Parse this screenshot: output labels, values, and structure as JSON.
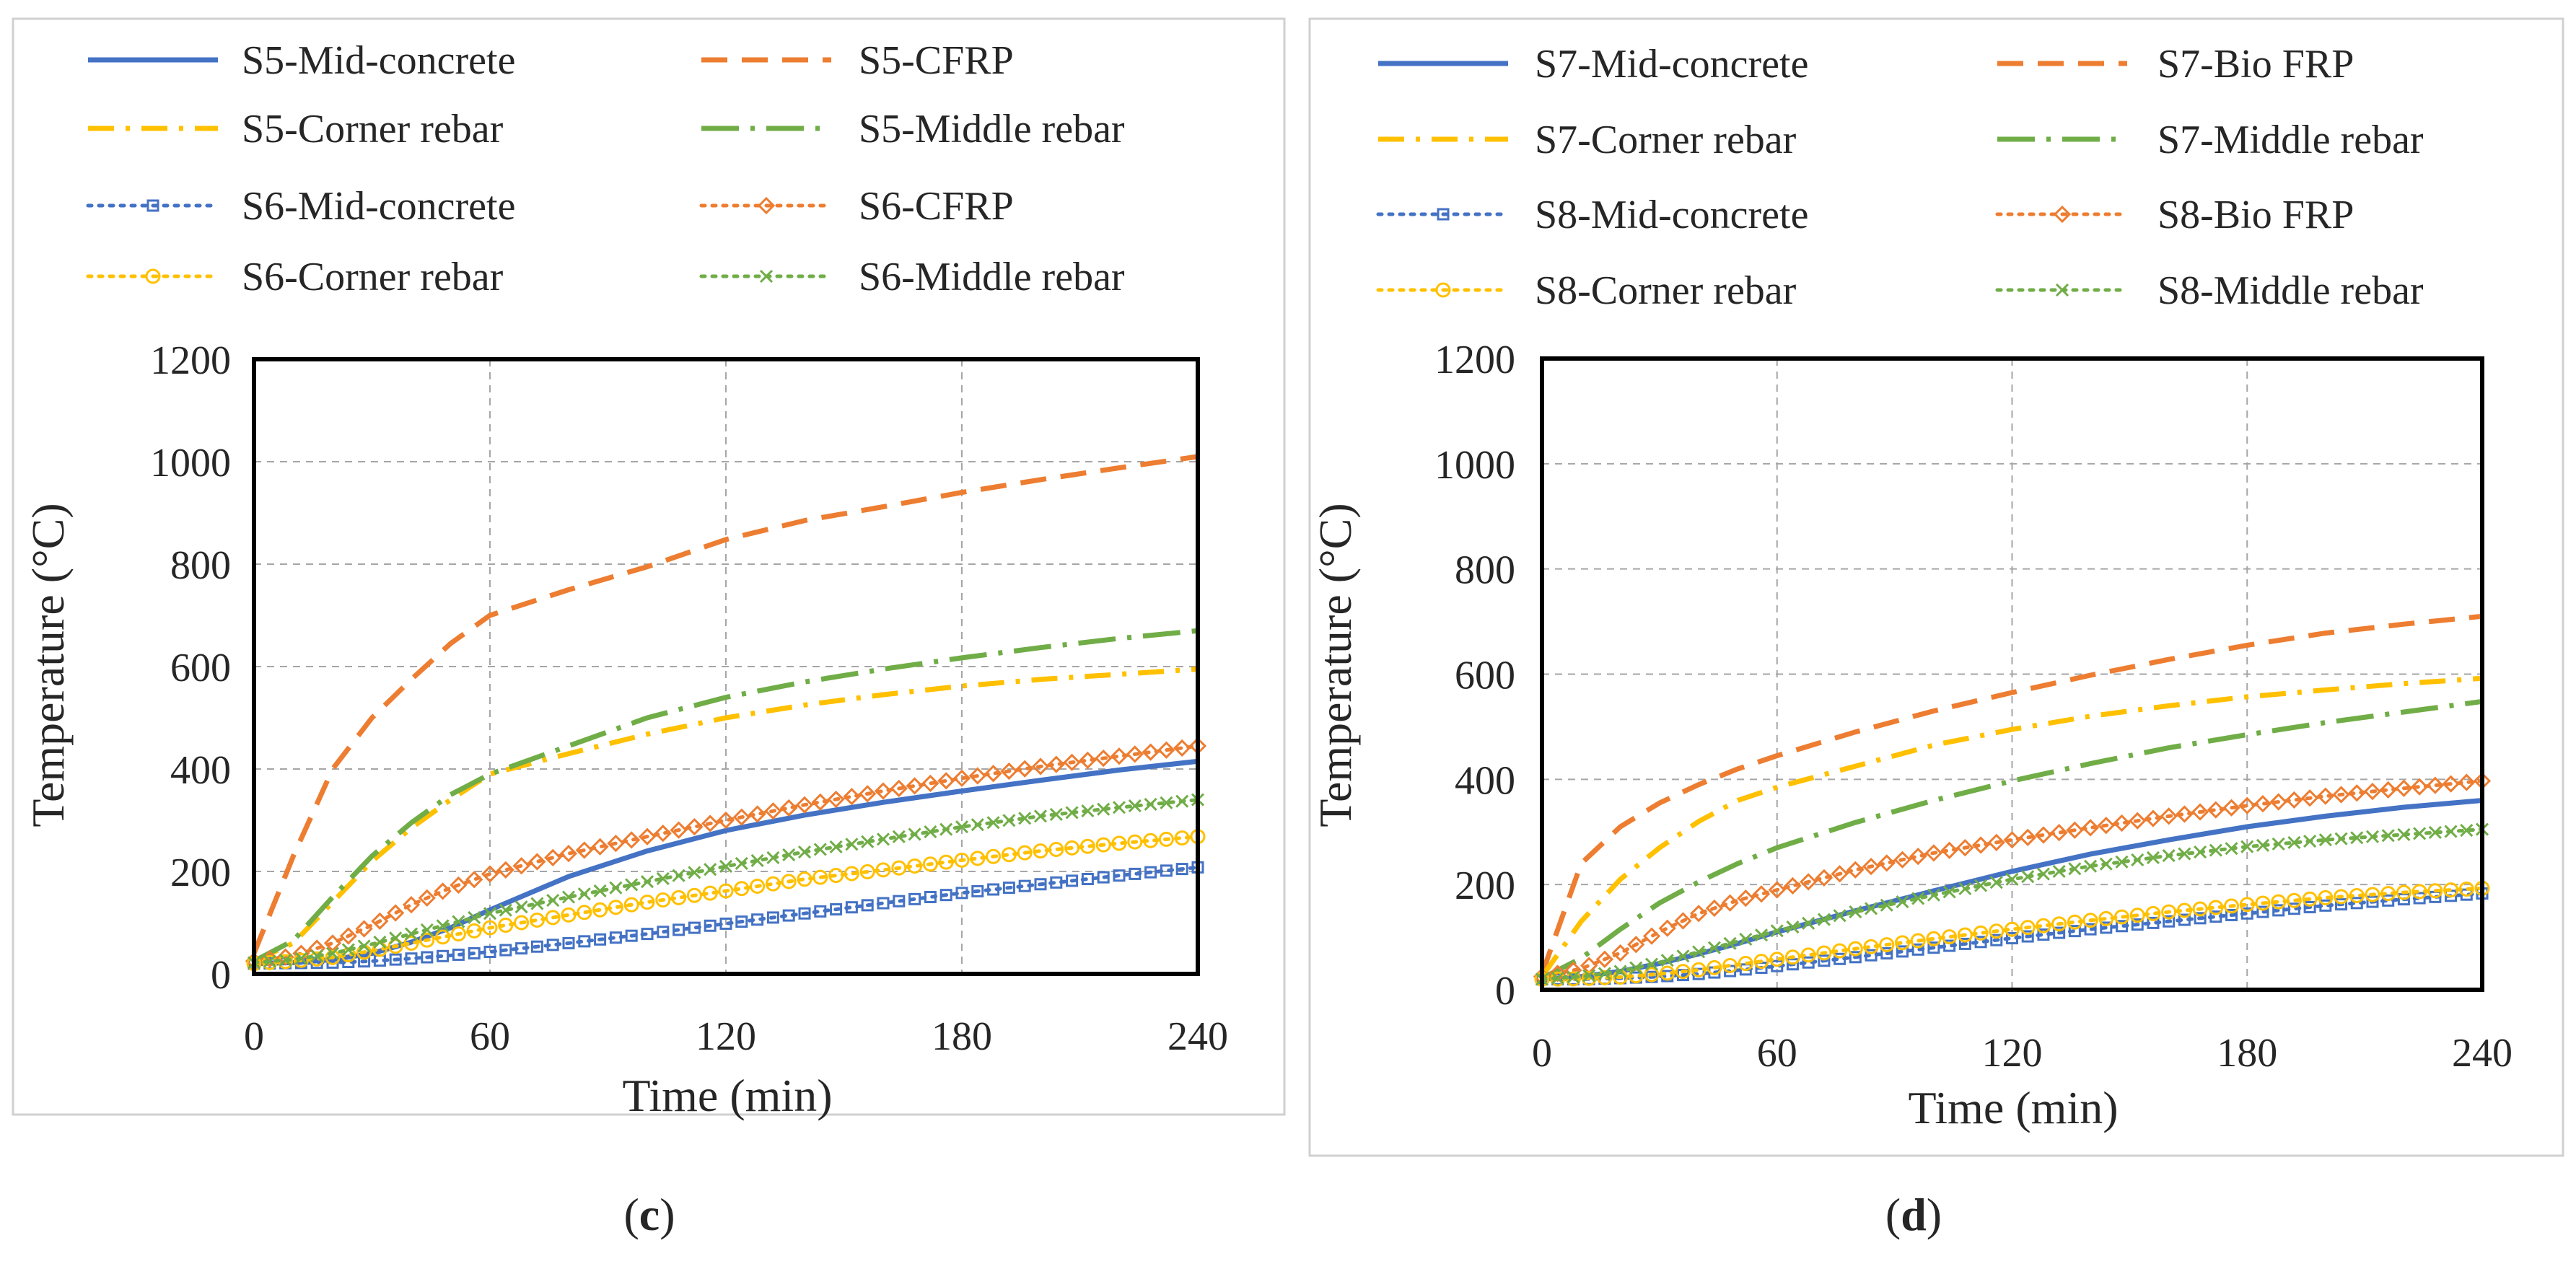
{
  "chart_data": [
    {
      "type": "line",
      "panel_label": "c",
      "xlabel": "Time (min)",
      "ylabel": "Temperature (°C)",
      "xlim": [
        0,
        240
      ],
      "ylim": [
        0,
        1200
      ],
      "xticks": [
        "0",
        "60",
        "120",
        "180",
        "240"
      ],
      "yticks": [
        "0",
        "200",
        "400",
        "600",
        "800",
        "1000",
        "1200"
      ],
      "grid": true,
      "legend_position": "top",
      "x": [
        0,
        10,
        20,
        30,
        40,
        50,
        60,
        80,
        100,
        120,
        140,
        160,
        180,
        200,
        220,
        240
      ],
      "series": [
        {
          "name": "S5-Mid-concrete",
          "color": "#4472C4",
          "style": "solid",
          "marker": "none",
          "values": [
            20,
            22,
            28,
            40,
            62,
            90,
            125,
            190,
            240,
            280,
            310,
            335,
            357,
            378,
            398,
            415
          ]
        },
        {
          "name": "S5-CFRP",
          "color": "#ED7D31",
          "style": "dash",
          "marker": "none",
          "values": [
            40,
            230,
            400,
            500,
            575,
            645,
            700,
            750,
            795,
            848,
            885,
            912,
            940,
            965,
            988,
            1010
          ]
        },
        {
          "name": "S5-Corner rebar",
          "color": "#FFC000",
          "style": "dashdot",
          "marker": "none",
          "values": [
            25,
            60,
            140,
            220,
            285,
            340,
            390,
            430,
            468,
            500,
            525,
            545,
            562,
            575,
            585,
            595
          ]
        },
        {
          "name": "S5-Middle rebar",
          "color": "#70AD47",
          "style": "longdashdot",
          "marker": "none",
          "values": [
            25,
            65,
            150,
            230,
            295,
            350,
            390,
            445,
            500,
            540,
            570,
            595,
            617,
            637,
            655,
            670
          ]
        },
        {
          "name": "S6-Mid-concrete",
          "color": "#4472C4",
          "style": "dot",
          "marker": "square",
          "values": [
            20,
            21,
            22,
            25,
            30,
            36,
            43,
            60,
            78,
            98,
            118,
            138,
            158,
            175,
            192,
            208
          ]
        },
        {
          "name": "S6-CFRP",
          "color": "#ED7D31",
          "style": "dot",
          "marker": "diamond",
          "values": [
            25,
            35,
            60,
            95,
            135,
            168,
            195,
            235,
            268,
            300,
            330,
            357,
            382,
            405,
            425,
            445
          ]
        },
        {
          "name": "S6-Corner rebar",
          "color": "#FFC000",
          "style": "dot",
          "marker": "circle",
          "values": [
            20,
            25,
            32,
            45,
            60,
            75,
            90,
            115,
            140,
            162,
            185,
            203,
            222,
            240,
            255,
            268
          ]
        },
        {
          "name": "S6-Middle rebar",
          "color": "#70AD47",
          "style": "dot",
          "marker": "x",
          "values": [
            22,
            28,
            40,
            58,
            78,
            98,
            118,
            150,
            180,
            210,
            238,
            263,
            287,
            308,
            325,
            340
          ]
        }
      ]
    },
    {
      "type": "line",
      "panel_label": "d",
      "xlabel": "Time (min)",
      "ylabel": "Temperature (°C)",
      "xlim": [
        0,
        240
      ],
      "ylim": [
        0,
        1200
      ],
      "xticks": [
        "0",
        "60",
        "120",
        "180",
        "240"
      ],
      "yticks": [
        "0",
        "200",
        "400",
        "600",
        "800",
        "1000",
        "1200"
      ],
      "grid": true,
      "legend_position": "top",
      "x": [
        0,
        10,
        20,
        30,
        40,
        50,
        60,
        80,
        100,
        120,
        140,
        160,
        180,
        200,
        220,
        240
      ],
      "series": [
        {
          "name": "S7-Mid-concrete",
          "color": "#4472C4",
          "style": "solid",
          "marker": "none",
          "values": [
            20,
            25,
            35,
            50,
            68,
            88,
            110,
            150,
            188,
            225,
            258,
            285,
            310,
            330,
            347,
            360
          ]
        },
        {
          "name": "S7-Bio FRP",
          "color": "#ED7D31",
          "style": "dash",
          "marker": "none",
          "values": [
            30,
            240,
            310,
            355,
            390,
            420,
            445,
            490,
            530,
            565,
            598,
            628,
            655,
            678,
            695,
            710
          ]
        },
        {
          "name": "S7-Corner rebar",
          "color": "#FFC000",
          "style": "dashdot",
          "marker": "none",
          "values": [
            25,
            130,
            210,
            270,
            320,
            360,
            385,
            425,
            465,
            495,
            520,
            540,
            557,
            570,
            582,
            592
          ]
        },
        {
          "name": "S7-Middle rebar",
          "color": "#70AD47",
          "style": "longdashdot",
          "marker": "none",
          "values": [
            22,
            60,
            115,
            165,
            205,
            240,
            270,
            318,
            360,
            397,
            430,
            460,
            485,
            508,
            528,
            548
          ]
        },
        {
          "name": "S8-Mid-concrete",
          "color": "#4472C4",
          "style": "dot",
          "marker": "square",
          "values": [
            20,
            20,
            22,
            25,
            30,
            37,
            45,
            62,
            80,
            98,
            115,
            130,
            145,
            160,
            172,
            183
          ]
        },
        {
          "name": "S8-Bio FRP",
          "color": "#ED7D31",
          "style": "dot",
          "marker": "diamond",
          "values": [
            25,
            40,
            70,
            110,
            145,
            170,
            190,
            228,
            260,
            285,
            308,
            330,
            350,
            368,
            383,
            397
          ]
        },
        {
          "name": "S8-Corner rebar",
          "color": "#FFC000",
          "style": "dot",
          "marker": "circle",
          "values": [
            20,
            21,
            24,
            30,
            38,
            48,
            58,
            78,
            97,
            115,
            132,
            148,
            162,
            175,
            185,
            193
          ]
        },
        {
          "name": "S8-Middle rebar",
          "color": "#70AD47",
          "style": "dot",
          "marker": "x",
          "values": [
            20,
            25,
            35,
            52,
            72,
            92,
            112,
            148,
            180,
            210,
            235,
            255,
            272,
            285,
            295,
            305
          ]
        }
      ]
    }
  ]
}
